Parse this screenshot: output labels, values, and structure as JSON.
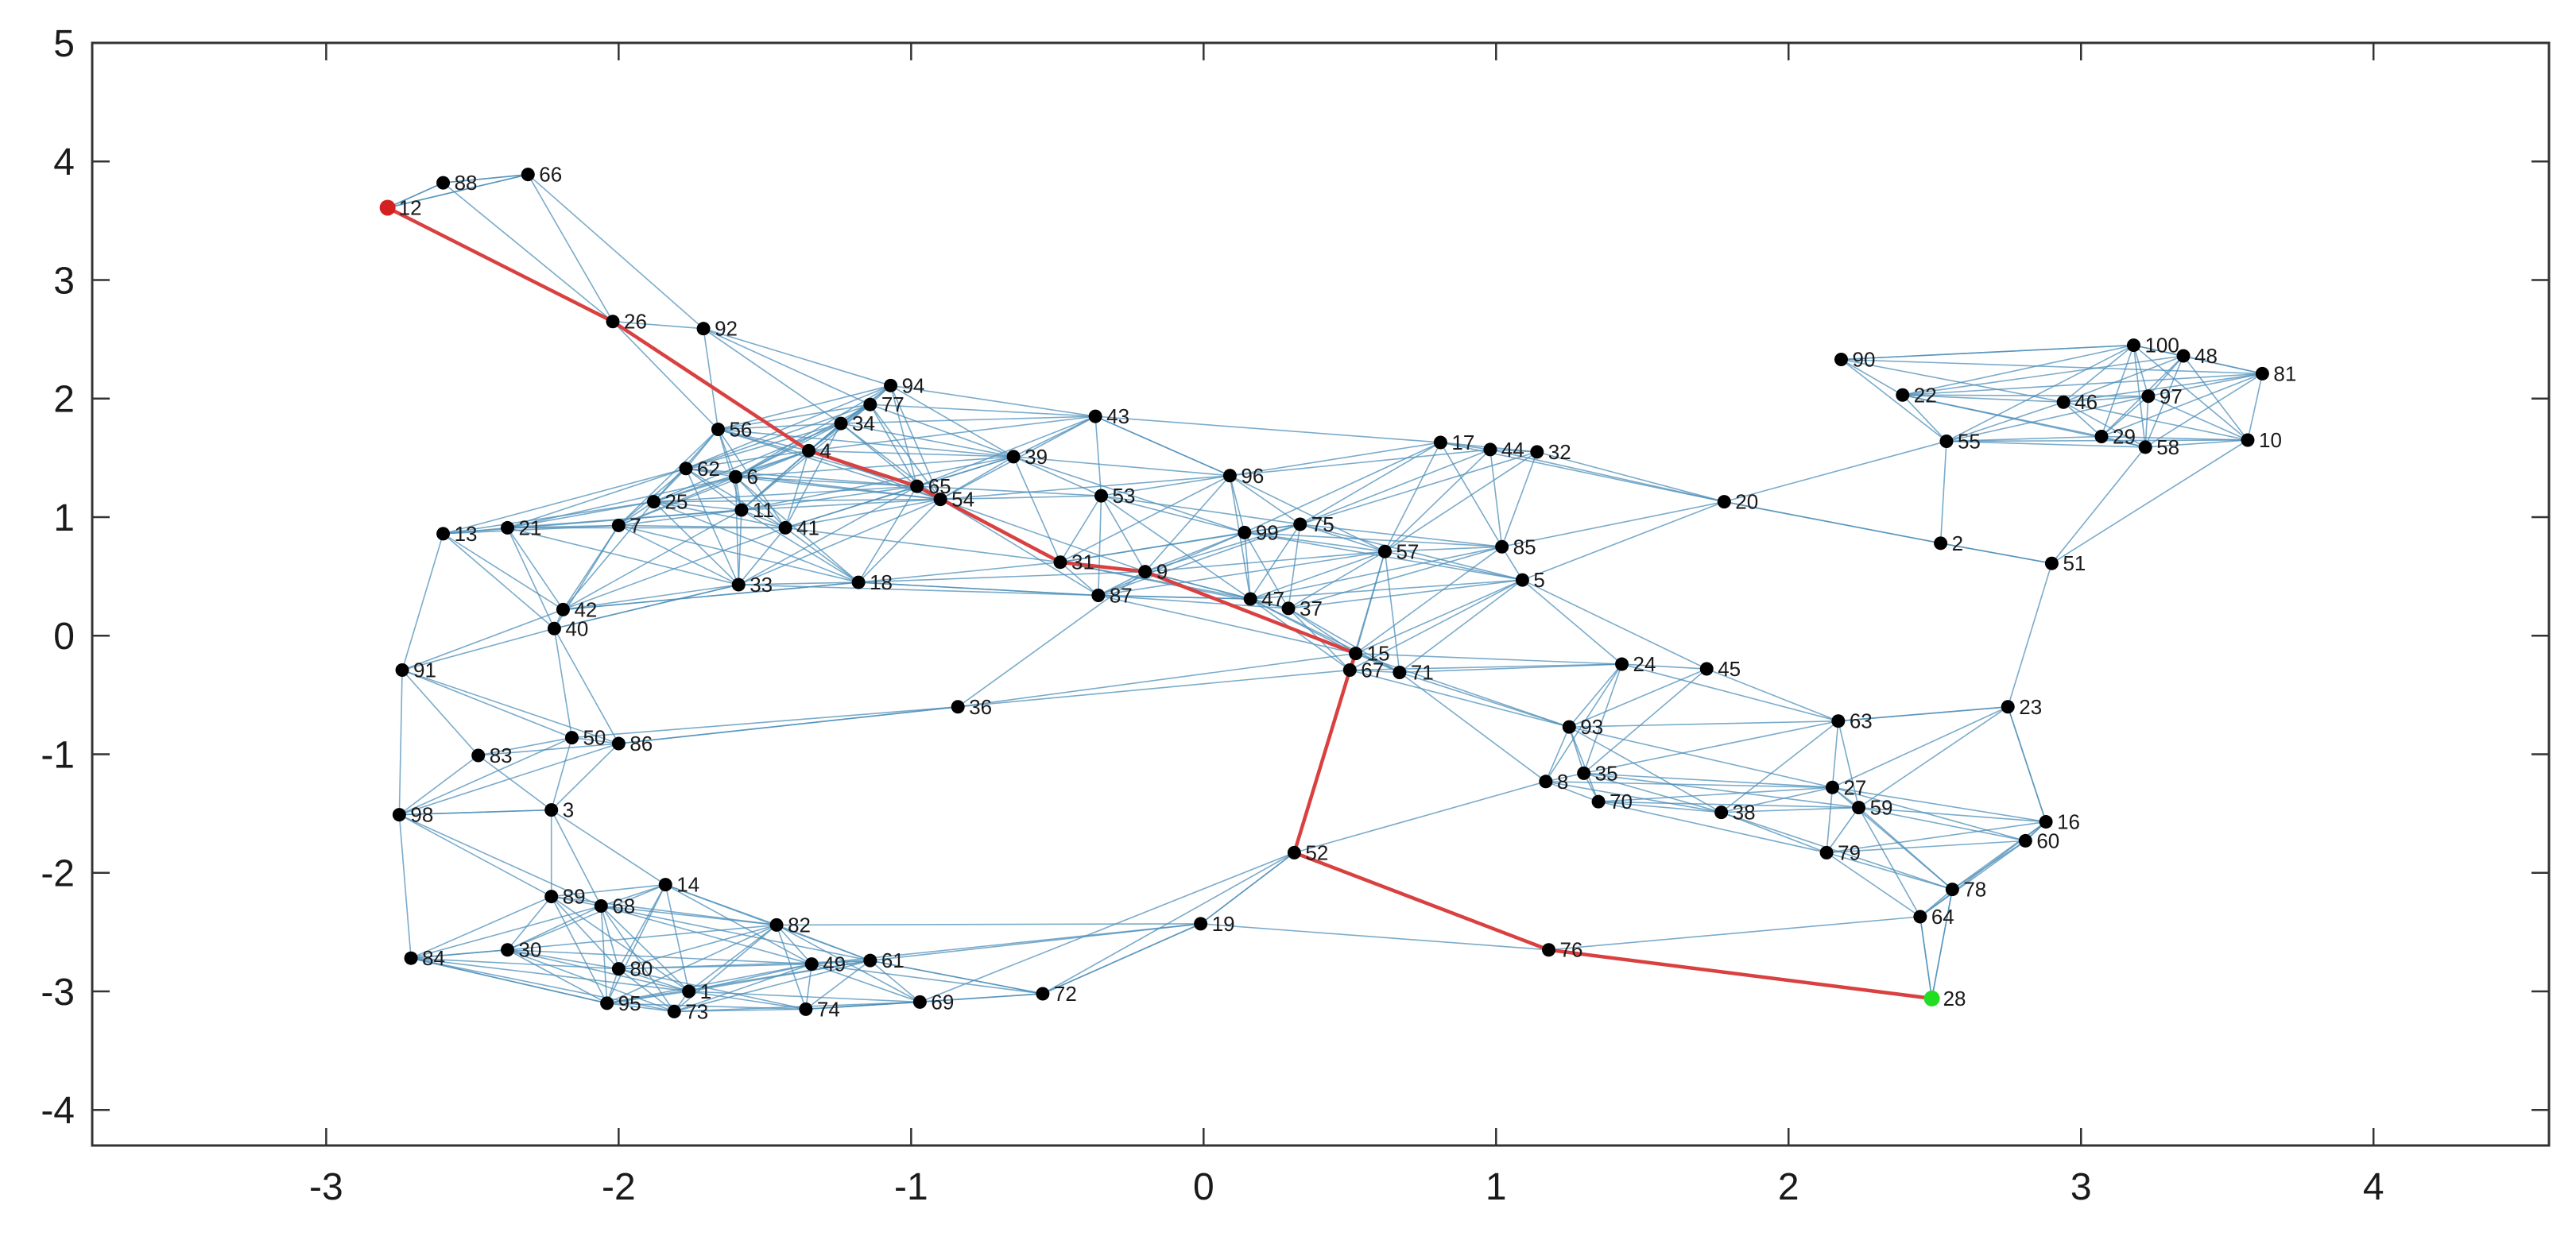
{
  "chart_data": {
    "type": "scatter",
    "title": "",
    "xlabel": "",
    "ylabel": "",
    "xlim": [
      -3.8,
      4.6
    ],
    "ylim": [
      -4.3,
      5.0
    ],
    "xticks": [
      -3,
      -2,
      -1,
      0,
      1,
      2,
      3,
      4
    ],
    "yticks": [
      -4,
      -3,
      -2,
      -1,
      0,
      1,
      2,
      3,
      4,
      5
    ],
    "grid": false,
    "legend": "none",
    "colors": {
      "edge": "#4d8fb8",
      "path": "#d94040",
      "node": "#000000",
      "start": "#d42020",
      "end": "#22dd22",
      "axis": "#333333"
    },
    "start_node": 12,
    "end_node": 28,
    "path": [
      12,
      26,
      4,
      65,
      31,
      9,
      15,
      67,
      52,
      76,
      28
    ],
    "nodes": [
      {
        "id": 1,
        "x": -1.76,
        "y": -3.0
      },
      {
        "id": 2,
        "x": 2.52,
        "y": 0.78
      },
      {
        "id": 3,
        "x": -2.23,
        "y": -1.47
      },
      {
        "id": 4,
        "x": -1.35,
        "y": 1.56
      },
      {
        "id": 5,
        "x": 1.09,
        "y": 0.47
      },
      {
        "id": 6,
        "x": -1.6,
        "y": 1.34
      },
      {
        "id": 7,
        "x": -2.0,
        "y": 0.93
      },
      {
        "id": 8,
        "x": 1.17,
        "y": -1.23
      },
      {
        "id": 9,
        "x": -0.2,
        "y": 0.54
      },
      {
        "id": 10,
        "x": 3.57,
        "y": 1.65
      },
      {
        "id": 11,
        "x": -1.58,
        "y": 1.06
      },
      {
        "id": 12,
        "x": -2.79,
        "y": 3.61
      },
      {
        "id": 13,
        "x": -2.6,
        "y": 0.86
      },
      {
        "id": 14,
        "x": -1.84,
        "y": -2.1
      },
      {
        "id": 15,
        "x": 0.52,
        "y": -0.15
      },
      {
        "id": 16,
        "x": 2.88,
        "y": -1.57
      },
      {
        "id": 17,
        "x": 0.81,
        "y": 1.63
      },
      {
        "id": 18,
        "x": -1.18,
        "y": 0.45
      },
      {
        "id": 19,
        "x": -0.01,
        "y": -2.43
      },
      {
        "id": 20,
        "x": 1.78,
        "y": 1.13
      },
      {
        "id": 21,
        "x": -2.38,
        "y": 0.91
      },
      {
        "id": 22,
        "x": 2.39,
        "y": 2.03
      },
      {
        "id": 23,
        "x": 2.75,
        "y": -0.6
      },
      {
        "id": 24,
        "x": 1.43,
        "y": -0.24
      },
      {
        "id": 25,
        "x": -1.88,
        "y": 1.13
      },
      {
        "id": 26,
        "x": -2.02,
        "y": 2.65
      },
      {
        "id": 27,
        "x": 2.15,
        "y": -1.28
      },
      {
        "id": 28,
        "x": 2.49,
        "y": -3.06
      },
      {
        "id": 29,
        "x": 3.07,
        "y": 1.68
      },
      {
        "id": 30,
        "x": -2.38,
        "y": -2.65
      },
      {
        "id": 31,
        "x": -0.49,
        "y": 0.62
      },
      {
        "id": 32,
        "x": 1.14,
        "y": 1.55
      },
      {
        "id": 33,
        "x": -1.59,
        "y": 0.43
      },
      {
        "id": 34,
        "x": -1.24,
        "y": 1.79
      },
      {
        "id": 35,
        "x": 1.3,
        "y": -1.16
      },
      {
        "id": 36,
        "x": -0.84,
        "y": -0.6
      },
      {
        "id": 37,
        "x": 0.29,
        "y": 0.23
      },
      {
        "id": 38,
        "x": 1.77,
        "y": -1.49
      },
      {
        "id": 39,
        "x": -0.65,
        "y": 1.51
      },
      {
        "id": 40,
        "x": -2.22,
        "y": 0.06
      },
      {
        "id": 41,
        "x": -1.43,
        "y": 0.91
      },
      {
        "id": 42,
        "x": -2.19,
        "y": 0.22
      },
      {
        "id": 43,
        "x": -0.37,
        "y": 1.85
      },
      {
        "id": 44,
        "x": 0.98,
        "y": 1.57
      },
      {
        "id": 45,
        "x": 1.72,
        "y": -0.28
      },
      {
        "id": 46,
        "x": 2.94,
        "y": 1.97
      },
      {
        "id": 47,
        "x": 0.16,
        "y": 0.31
      },
      {
        "id": 48,
        "x": 3.35,
        "y": 2.36
      },
      {
        "id": 49,
        "x": -1.34,
        "y": -2.77
      },
      {
        "id": 50,
        "x": -2.16,
        "y": -0.86
      },
      {
        "id": 51,
        "x": 2.9,
        "y": 0.61
      },
      {
        "id": 52,
        "x": 0.31,
        "y": -1.83
      },
      {
        "id": 53,
        "x": -0.35,
        "y": 1.18
      },
      {
        "id": 54,
        "x": -0.9,
        "y": 1.15
      },
      {
        "id": 55,
        "x": 2.54,
        "y": 1.64
      },
      {
        "id": 56,
        "x": -1.66,
        "y": 1.74
      },
      {
        "id": 57,
        "x": 0.62,
        "y": 0.71
      },
      {
        "id": 58,
        "x": 3.22,
        "y": 1.59
      },
      {
        "id": 59,
        "x": 2.24,
        "y": -1.45
      },
      {
        "id": 60,
        "x": 2.81,
        "y": -1.73
      },
      {
        "id": 61,
        "x": -1.14,
        "y": -2.74
      },
      {
        "id": 62,
        "x": -1.77,
        "y": 1.41
      },
      {
        "id": 63,
        "x": 2.17,
        "y": -0.72
      },
      {
        "id": 64,
        "x": 2.45,
        "y": -2.37
      },
      {
        "id": 65,
        "x": -0.98,
        "y": 1.26
      },
      {
        "id": 66,
        "x": -2.31,
        "y": 3.89
      },
      {
        "id": 67,
        "x": 0.5,
        "y": -0.29
      },
      {
        "id": 68,
        "x": -2.06,
        "y": -2.28
      },
      {
        "id": 69,
        "x": -0.97,
        "y": -3.09
      },
      {
        "id": 70,
        "x": 1.35,
        "y": -1.4
      },
      {
        "id": 71,
        "x": 0.67,
        "y": -0.31
      },
      {
        "id": 72,
        "x": -0.55,
        "y": -3.02
      },
      {
        "id": 73,
        "x": -1.81,
        "y": -3.17
      },
      {
        "id": 74,
        "x": -1.36,
        "y": -3.15
      },
      {
        "id": 75,
        "x": 0.33,
        "y": 0.94
      },
      {
        "id": 76,
        "x": 1.18,
        "y": -2.65
      },
      {
        "id": 77,
        "x": -1.14,
        "y": 1.95
      },
      {
        "id": 78,
        "x": 2.56,
        "y": -2.14
      },
      {
        "id": 79,
        "x": 2.13,
        "y": -1.83
      },
      {
        "id": 80,
        "x": -2.0,
        "y": -2.81
      },
      {
        "id": 81,
        "x": 3.62,
        "y": 2.21
      },
      {
        "id": 82,
        "x": -1.46,
        "y": -2.44
      },
      {
        "id": 83,
        "x": -2.48,
        "y": -1.01
      },
      {
        "id": 84,
        "x": -2.71,
        "y": -2.72
      },
      {
        "id": 85,
        "x": 1.02,
        "y": 0.75
      },
      {
        "id": 86,
        "x": -2.0,
        "y": -0.91
      },
      {
        "id": 87,
        "x": -0.36,
        "y": 0.34
      },
      {
        "id": 88,
        "x": -2.6,
        "y": 3.82
      },
      {
        "id": 89,
        "x": -2.23,
        "y": -2.2
      },
      {
        "id": 90,
        "x": 2.18,
        "y": 2.33
      },
      {
        "id": 91,
        "x": -2.74,
        "y": -0.29
      },
      {
        "id": 92,
        "x": -1.71,
        "y": 2.59
      },
      {
        "id": 93,
        "x": 1.25,
        "y": -0.77
      },
      {
        "id": 94,
        "x": -1.07,
        "y": 2.11
      },
      {
        "id": 95,
        "x": -2.04,
        "y": -3.1
      },
      {
        "id": 96,
        "x": 0.09,
        "y": 1.35
      },
      {
        "id": 97,
        "x": 3.23,
        "y": 2.02
      },
      {
        "id": 98,
        "x": -2.75,
        "y": -1.51
      },
      {
        "id": 99,
        "x": 0.14,
        "y": 0.87
      },
      {
        "id": 100,
        "x": 3.18,
        "y": 2.45
      }
    ]
  }
}
